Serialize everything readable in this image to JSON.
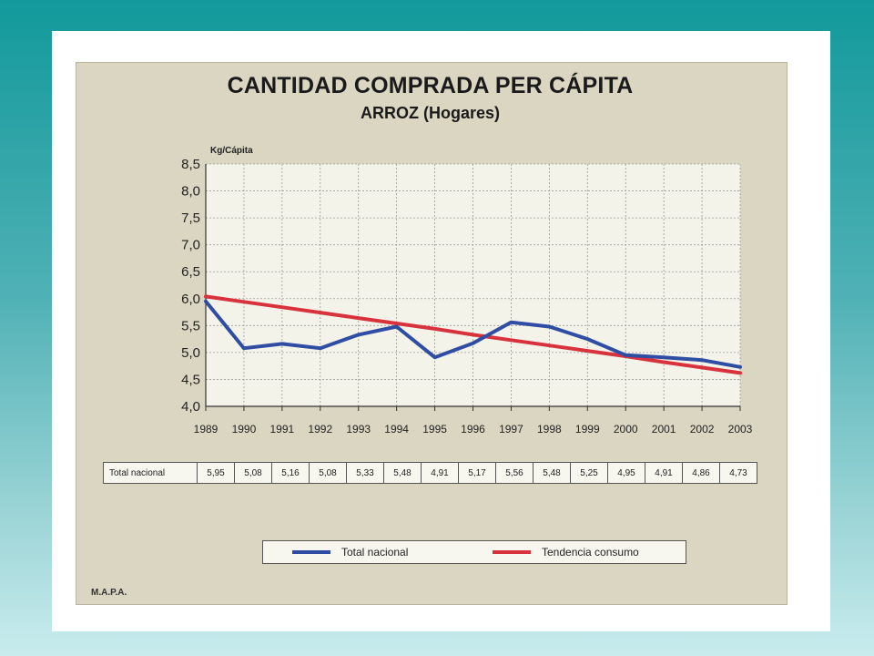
{
  "chart_data": {
    "type": "line",
    "title": "CANTIDAD COMPRADA PER CÁPITA",
    "subtitle": "ARROZ (Hogares)",
    "ylabel": "Kg/Cápita",
    "xlabel": "",
    "categories": [
      "1989",
      "1990",
      "1991",
      "1992",
      "1993",
      "1994",
      "1995",
      "1996",
      "1997",
      "1998",
      "1999",
      "2000",
      "2001",
      "2002",
      "2003"
    ],
    "ylim": [
      4.0,
      8.5
    ],
    "yticks": [
      "8,5",
      "8,0",
      "7,5",
      "7,0",
      "6,5",
      "6,0",
      "5,5",
      "5,0",
      "4,5",
      "4,0"
    ],
    "ytick_values": [
      8.5,
      8.0,
      7.5,
      7.0,
      6.5,
      6.0,
      5.5,
      5.0,
      4.5,
      4.0
    ],
    "grid": true,
    "legend_position": "bottom",
    "series": [
      {
        "name": "Total nacional",
        "color": "#2e4da3",
        "values": [
          5.95,
          5.08,
          5.16,
          5.08,
          5.33,
          5.48,
          4.91,
          5.17,
          5.56,
          5.48,
          5.25,
          4.95,
          4.91,
          4.86,
          4.73
        ]
      },
      {
        "name": "Tendencia consumo",
        "color": "#d8323c",
        "values": [
          6.04,
          5.94,
          5.84,
          5.74,
          5.64,
          5.54,
          5.44,
          5.33,
          5.23,
          5.13,
          5.03,
          4.93,
          4.82,
          4.72,
          4.62
        ]
      }
    ]
  },
  "table": {
    "row_label": "Total nacional",
    "cells": [
      "5,95",
      "5,08",
      "5,16",
      "5,08",
      "5,33",
      "5,48",
      "4,91",
      "5,17",
      "5,56",
      "5,48",
      "5,25",
      "4,95",
      "4,91",
      "4,86",
      "4,73"
    ]
  },
  "legend": {
    "items": [
      {
        "label": "Total nacional",
        "color": "#2e4da3"
      },
      {
        "label": "Tendencia consumo",
        "color": "#d8323c"
      }
    ]
  },
  "footer": {
    "credit": "M.A.P.A."
  }
}
